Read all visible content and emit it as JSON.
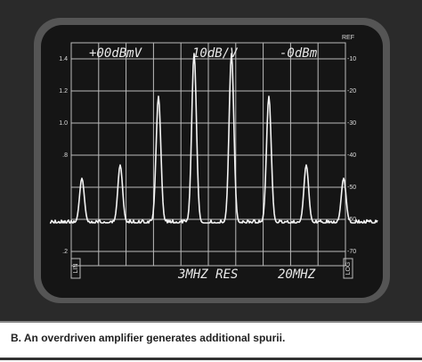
{
  "screen": {
    "header_left": "+00dBmV",
    "header_center": "10dB/V",
    "header_right": "-0dBm",
    "ref_label": "REF",
    "left_scale": [
      "1.4",
      "1.2",
      "1.0",
      ".8",
      null,
      null,
      ".2"
    ],
    "right_scale": [
      "-10",
      "-20",
      "-30",
      "-40",
      "-50",
      "-60",
      "-70"
    ],
    "footer_resolution": "3MHZ RES",
    "footer_span": "20MHZ",
    "mode_left": "LIN",
    "mode_right": "LOG"
  },
  "caption": "B.  An overdriven amplifier generates additional spurii."
}
